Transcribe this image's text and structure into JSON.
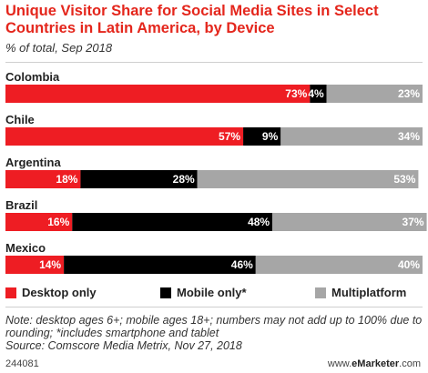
{
  "title": "Unique Visitor Share for Social Media Sites in Select Countries in Latin America, by Device",
  "subtitle": "% of total, Sep 2018",
  "note": "Note: desktop ages 6+; mobile ages 18+; numbers may not add up to 100% due to rounding; *includes smartphone and tablet",
  "source": "Source: Comscore Media Metrix, Nov 27, 2018",
  "footer": {
    "code": "244081",
    "brand_prefix": "www.",
    "brand_name": "eMarketer",
    "brand_suffix": ".com"
  },
  "colors": {
    "desktop": "#ee1d23",
    "mobile": "#000000",
    "multiplatform": "#a6a6a6",
    "title": "#e4261c"
  },
  "chart_data": {
    "type": "bar",
    "orientation": "horizontal",
    "stacked": true,
    "categories": [
      "Colombia",
      "Chile",
      "Argentina",
      "Brazil",
      "Mexico"
    ],
    "series": [
      {
        "name": "Desktop only",
        "values": [
          73,
          57,
          18,
          16,
          14
        ],
        "labels": [
          "73%",
          "57%",
          "18%",
          "16%",
          "14%"
        ]
      },
      {
        "name": "Mobile only*",
        "values": [
          4,
          9,
          28,
          48,
          46
        ],
        "labels": [
          "4%",
          "9%",
          "28%",
          "48%",
          "46%"
        ]
      },
      {
        "name": "Multiplatform",
        "values": [
          23,
          34,
          53,
          37,
          40
        ],
        "labels": [
          "23%",
          "34%",
          "53%",
          "37%",
          "40%"
        ]
      }
    ],
    "xlim": [
      0,
      100
    ],
    "legend": "bottom"
  }
}
